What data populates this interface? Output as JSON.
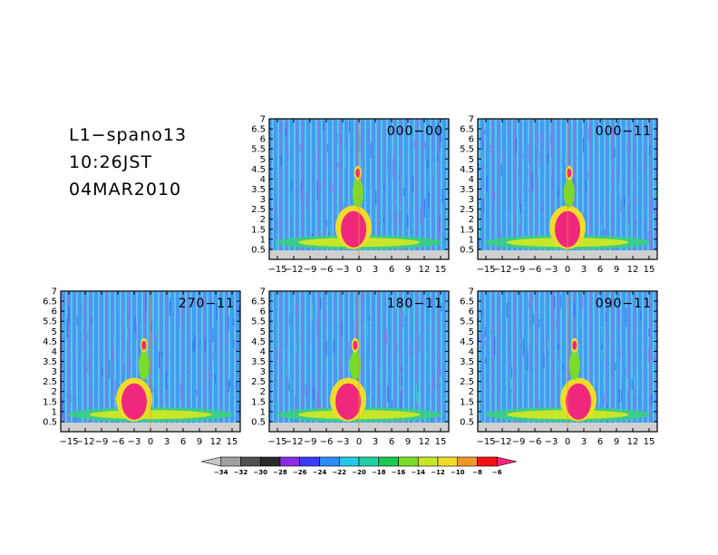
{
  "header": {
    "line1": "L1−spano13",
    "line2": "10:26JST",
    "line3": "04MAR2010"
  },
  "chart_data": {
    "type": "heatmap",
    "x_ticks": [
      "−15",
      "−12",
      "−9",
      "−6",
      "−3",
      "0",
      "3",
      "6",
      "9",
      "12",
      "15"
    ],
    "x_tick_values": [
      -15,
      -12,
      -9,
      -6,
      -3,
      0,
      3,
      6,
      9,
      12,
      15
    ],
    "y_ticks": [
      "0.5",
      "1",
      "1.5",
      "2",
      "2.5",
      "3",
      "3.5",
      "4",
      "4.5",
      "5",
      "5.5",
      "6",
      "6.5",
      "7"
    ],
    "y_tick_values": [
      0.5,
      1,
      1.5,
      2,
      2.5,
      3,
      3.5,
      4,
      4.5,
      5,
      5.5,
      6,
      6.5,
      7
    ],
    "xlim": [
      -16.5,
      16.5
    ],
    "ylim": [
      0,
      7
    ],
    "panels": [
      {
        "label": "000−00",
        "row": 0,
        "col": 1
      },
      {
        "label": "000−11",
        "row": 0,
        "col": 2
      },
      {
        "label": "270−11",
        "row": 1,
        "col": 0
      },
      {
        "label": "180−11",
        "row": 1,
        "col": 1
      },
      {
        "label": "090−11",
        "row": 1,
        "col": 2
      }
    ],
    "colorbar": {
      "labels": [
        "−34",
        "−32",
        "−30",
        "−28",
        "−26",
        "−24",
        "−22",
        "−20",
        "−18",
        "−16",
        "−14",
        "−12",
        "−10",
        "−8",
        "−6"
      ],
      "values": [
        -34,
        -32,
        -30,
        -28,
        -26,
        -24,
        -22,
        -20,
        -18,
        -16,
        -14,
        -12,
        -10,
        -8,
        -6
      ],
      "colors": [
        "#c8c8c8",
        "#a0a0a0",
        "#505050",
        "#2a2a2a",
        "#8a2be2",
        "#3c3cff",
        "#2f8cff",
        "#28c8e6",
        "#20d0a0",
        "#18c850",
        "#78dc28",
        "#c8e628",
        "#f0dc28",
        "#f09628",
        "#f01414",
        "#f0287d"
      ]
    }
  }
}
